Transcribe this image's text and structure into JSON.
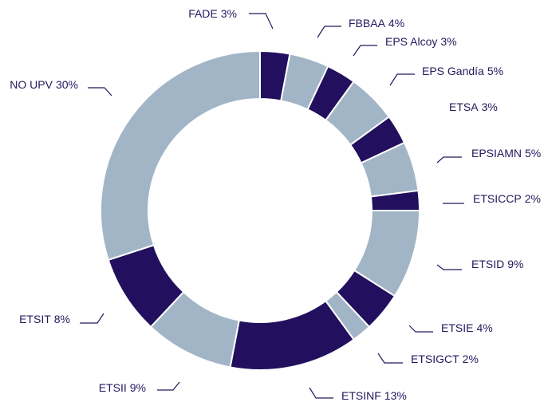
{
  "chart_data": {
    "type": "donut",
    "categories": [
      "FADE",
      "FBBAA",
      "EPS Alcoy",
      "EPS Gandía",
      "ETSA",
      "EPSIAMN",
      "ETSICCP",
      "ETSID",
      "ETSIE",
      "ETSIGCT",
      "ETSINF",
      "ETSII",
      "ETSIT",
      "NO UPV"
    ],
    "values": [
      3,
      4,
      3,
      5,
      3,
      5,
      2,
      9,
      4,
      2,
      13,
      9,
      8,
      30
    ],
    "value_labels": [
      "3%",
      "4%",
      "3%",
      "5%",
      "3%",
      "5%",
      "2%",
      "9%",
      "4%",
      "2%",
      "13%",
      "9%",
      "8%",
      "30%"
    ],
    "colors": [
      "#22105e",
      "#a2b5c6",
      "#22105e",
      "#a2b5c6",
      "#22105e",
      "#a2b5c6",
      "#22105e",
      "#a2b5c6",
      "#22105e",
      "#a2b5c6",
      "#22105e",
      "#a2b5c6",
      "#22105e",
      "#a2b5c6"
    ]
  }
}
